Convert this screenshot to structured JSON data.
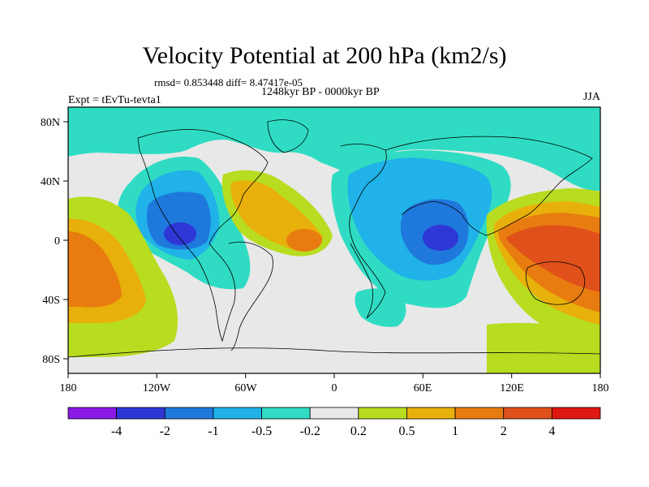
{
  "title": "Velocity Potential at 200 hPa (km2/s)",
  "stats": "rmsd= 0.853448  diff= 8.47417e-05",
  "period": "1248kyr BP - 0000kyr BP",
  "experiment": "Expt = tEvTu-tevta1",
  "season": "JJA",
  "axes": {
    "lon_ticks": [
      "180",
      "120W",
      "60W",
      "0",
      "60E",
      "120E",
      "180"
    ],
    "lat_ticks": [
      "80N",
      "40N",
      "0",
      "40S",
      "80S"
    ]
  },
  "colorbar": {
    "labels": [
      "-4",
      "-2",
      "-1",
      "-0.5",
      "-0.2",
      "0.2",
      "0.5",
      "1",
      "2",
      "4"
    ],
    "colors": [
      "#8b1ae6",
      "#2e36d6",
      "#1f78dc",
      "#20b2e8",
      "#2fdcc3",
      "#e8e8e8",
      "#b8dc20",
      "#e8b00a",
      "#e87c10",
      "#e0501a",
      "#e01812"
    ]
  },
  "field_colors": {
    "land_outline": "#000000",
    "background": "#e8e8e8"
  }
}
